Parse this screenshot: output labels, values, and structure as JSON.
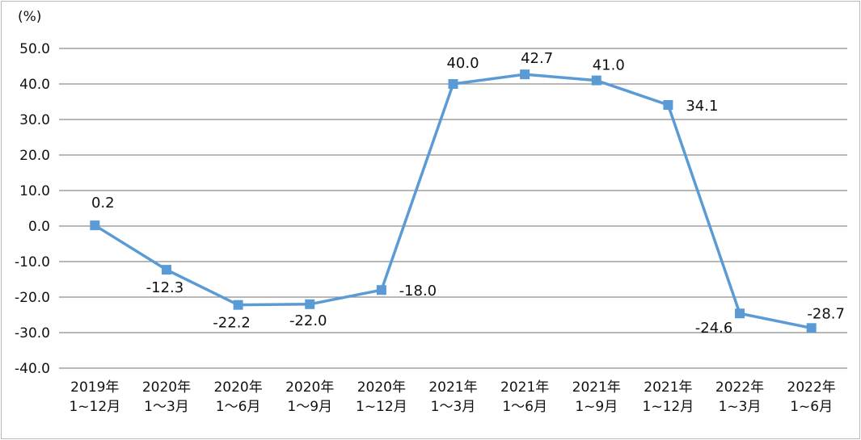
{
  "chart_data": {
    "type": "line",
    "unit_label": "(%)",
    "categories": [
      [
        "2019年",
        "1~12月"
      ],
      [
        "2020年",
        "1～3月"
      ],
      [
        "2020年",
        "1～6月"
      ],
      [
        "2020年",
        "1～9月"
      ],
      [
        "2020年",
        "1~12月"
      ],
      [
        "2021年",
        "1～3月"
      ],
      [
        "2021年",
        "1～6月"
      ],
      [
        "2021年",
        "1~9月"
      ],
      [
        "2021年",
        "1~12月"
      ],
      [
        "2022年",
        "1~3月"
      ],
      [
        "2022年",
        "1~6月"
      ]
    ],
    "series": [
      {
        "values": [
          0.2,
          -12.3,
          -22.2,
          -22.0,
          -18.0,
          40.0,
          42.7,
          41.0,
          34.1,
          -24.6,
          -28.7
        ],
        "labels": [
          "0.2",
          "-12.3",
          "-22.2",
          "-22.0",
          "-18.0",
          "40.0",
          "42.7",
          "41.0",
          "34.1",
          "-24.6",
          "-28.7"
        ],
        "color": "#5b9bd5"
      }
    ],
    "ylim": [
      -40,
      50
    ],
    "yticks": [
      "50.0",
      "40.0",
      "30.0",
      "20.0",
      "10.0",
      "0.0",
      "-10.0",
      "-20.0",
      "-30.0",
      "-40.0"
    ],
    "grid": true,
    "gridColor": "#8c8c8c",
    "legend": "none"
  }
}
